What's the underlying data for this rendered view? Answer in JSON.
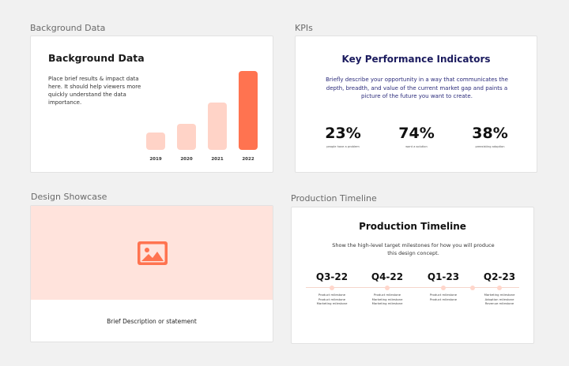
{
  "frames": {
    "background_data": {
      "label": "Background Data",
      "title": "Background Data",
      "description": "Place brief results & impact data here. It should help viewers more quickly understand the data importance.",
      "chart_data": {
        "type": "bar",
        "categories": [
          "2019",
          "2020",
          "2021",
          "2022"
        ],
        "values": [
          22,
          33,
          60,
          100
        ],
        "colors": [
          "#ffd3c7",
          "#ffd3c7",
          "#ffd3c7",
          "#ff7350"
        ]
      }
    },
    "kpis": {
      "label": "KPIs",
      "title": "Key Performance Indicators",
      "description": "Briefly describe your opportunity in a way that communicates the depth, breadth, and value of the current market gap and paints a picture of the future you want to create.",
      "items": [
        {
          "value": "23%",
          "label": "people have a problem"
        },
        {
          "value": "74%",
          "label": "want a solution"
        },
        {
          "value": "38%",
          "label": "preexisting adoption"
        }
      ]
    },
    "design_showcase": {
      "label": "Design Showcase",
      "image_icon": "image-icon",
      "accent": "#ff7350",
      "description": "Brief Description or statement"
    },
    "production_timeline": {
      "label": "Production Timeline",
      "title": "Production Timeline",
      "description": "Show the high-level target milestones for how you will produce this design concept.",
      "columns": [
        {
          "quarter": "Q3-22",
          "milestones": [
            "Product milestone",
            "Product milestone",
            "Marketing milestone"
          ]
        },
        {
          "quarter": "Q4-22",
          "milestones": [
            "Product milestone",
            "Marketing milestone",
            "Marketing milestone"
          ]
        },
        {
          "quarter": "Q1-23",
          "milestones": [
            "Product milestone",
            "Product milestone"
          ]
        },
        {
          "quarter": "Q2-23",
          "milestones": [
            "Marketing milestone",
            "Adoption milestone",
            "Revenue milestone"
          ]
        }
      ]
    }
  }
}
